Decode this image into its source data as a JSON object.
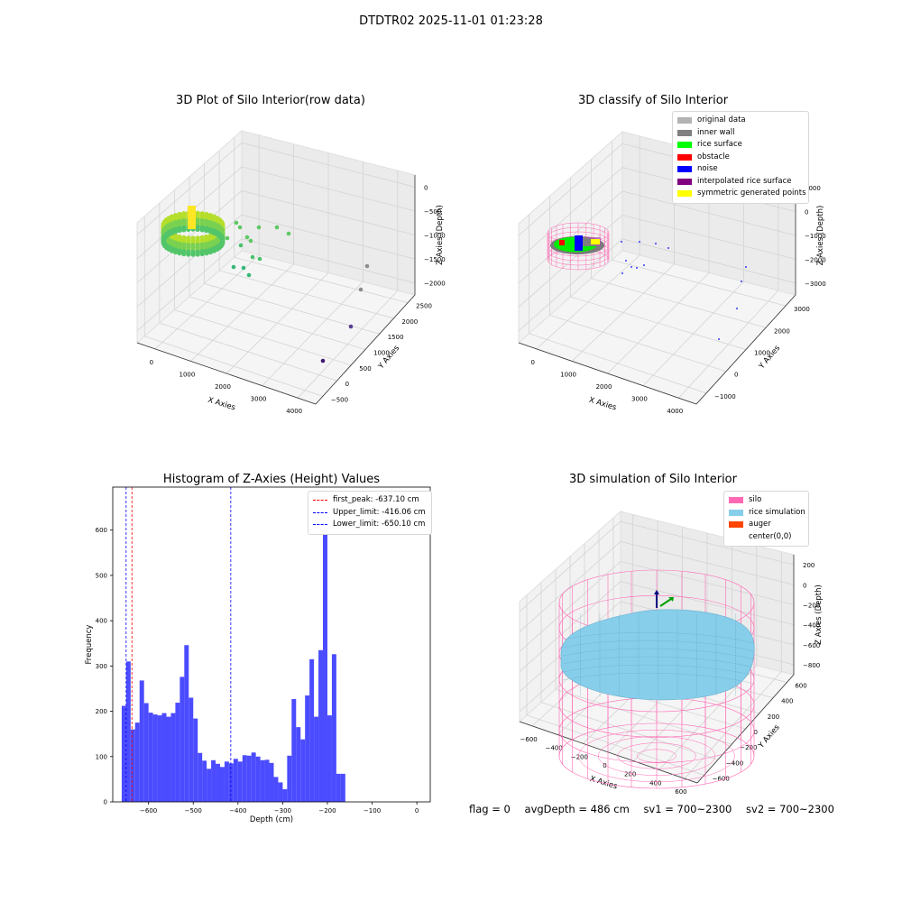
{
  "suptitle": "DTDTR02 2025-11-01 01:23:28",
  "footer": {
    "flag": "flag = 0",
    "avg_depth": "avgDepth = 486 cm",
    "sv1": "sv1 = 700~2300",
    "sv2": "sv2 = 700~2300"
  },
  "chart_data": [
    {
      "type": "scatter3d",
      "title": "3D Plot of Silo Interior(row data)",
      "xlabel": "X Axies",
      "ylabel": "Y Axies",
      "zlabel": "Z Axies (Depth)",
      "x_ticks": [
        "0",
        "1000",
        "2000",
        "3000",
        "4000"
      ],
      "y_ticks": [
        "−500",
        "0",
        "500",
        "1000",
        "1500",
        "2000",
        "2500"
      ],
      "z_ticks": [
        "−2000",
        "−1500",
        "−1000",
        "−500",
        "0"
      ],
      "colormap": "viridis",
      "grid": true
    },
    {
      "type": "scatter3d",
      "title": "3D classify of Silo Interior",
      "xlabel": "X Axies",
      "ylabel": "Y Axies",
      "zlabel": "Z Axies (Depth)",
      "x_ticks": [
        "0",
        "1000",
        "2000",
        "3000",
        "4000"
      ],
      "y_ticks": [
        "−1000",
        "0",
        "1000",
        "2000",
        "3000"
      ],
      "z_ticks": [
        "−3000",
        "−2000",
        "−1000",
        "0",
        "1000"
      ],
      "legend_position": "top-right",
      "legend": [
        {
          "label": "original data",
          "color": "#b3b3b3"
        },
        {
          "label": "inner wall",
          "color": "#808080"
        },
        {
          "label": "rice surface",
          "color": "#00ff00"
        },
        {
          "label": "obstacle",
          "color": "#ff0000"
        },
        {
          "label": "noise",
          "color": "#0000ff"
        },
        {
          "label": "interpolated rice surface",
          "color": "#800080"
        },
        {
          "label": "symmetric generated points",
          "color": "#ffff00"
        }
      ],
      "grid": true
    },
    {
      "type": "histogram",
      "title": "Histogram of Z-Axies (Height) Values",
      "xlabel": "Depth (cm)",
      "ylabel": "Frequency",
      "xlim": [
        -680,
        30
      ],
      "ylim": [
        0,
        695
      ],
      "bin_start": -660,
      "bin_width": 10,
      "values": [
        212,
        310,
        160,
        175,
        268,
        218,
        197,
        193,
        191,
        196,
        188,
        196,
        219,
        276,
        346,
        230,
        184,
        108,
        91,
        73,
        92,
        84,
        77,
        89,
        85,
        95,
        89,
        103,
        102,
        109,
        100,
        92,
        93,
        86,
        55,
        43,
        28,
        102,
        227,
        165,
        138,
        235,
        315,
        188,
        335,
        645,
        191,
        326,
        62,
        62
      ],
      "bar_color": "#4b4bff",
      "x_ticks": [
        -600,
        -500,
        -400,
        -300,
        -200,
        -100,
        0
      ],
      "x_tick_labels": [
        "−600",
        "−500",
        "−400",
        "−300",
        "−200",
        "−100",
        "0"
      ],
      "y_ticks": [
        0,
        100,
        200,
        300,
        400,
        500,
        600
      ],
      "y_tick_labels": [
        "0",
        "100",
        "200",
        "300",
        "400",
        "500",
        "600"
      ],
      "vlines": [
        {
          "label": "first_peak: -637.10 cm",
          "x": -637.1,
          "color": "#ff0000"
        },
        {
          "label": "Upper_limit: -416.06 cm",
          "x": -416.06,
          "color": "#0000ff"
        },
        {
          "label": "Lower_limit: -650.10 cm",
          "x": -650.1,
          "color": "#0000ff"
        }
      ],
      "legend_position": "top-right"
    },
    {
      "type": "surface3d",
      "title": "3D simulation of Silo Interior",
      "xlabel": "X Axies",
      "ylabel": "Y Axies",
      "zlabel": "Z Axies (Depth)",
      "x_ticks": [
        "−600",
        "−400",
        "−200",
        "0",
        "200",
        "400",
        "600"
      ],
      "y_ticks": [
        "−600",
        "−400",
        "−200",
        "0",
        "200",
        "400",
        "600"
      ],
      "z_ticks": [
        "−800",
        "−600",
        "−400",
        "−200",
        "0",
        "200"
      ],
      "legend_position": "top-right",
      "legend": [
        {
          "label": "silo",
          "color": "#ff69b4"
        },
        {
          "label": "rice simulation",
          "color": "#87ceeb"
        },
        {
          "label": "auger",
          "color": "#ff4500"
        },
        {
          "label": "center(0,0)",
          "color": "#ffffff"
        }
      ],
      "grid": true
    }
  ]
}
